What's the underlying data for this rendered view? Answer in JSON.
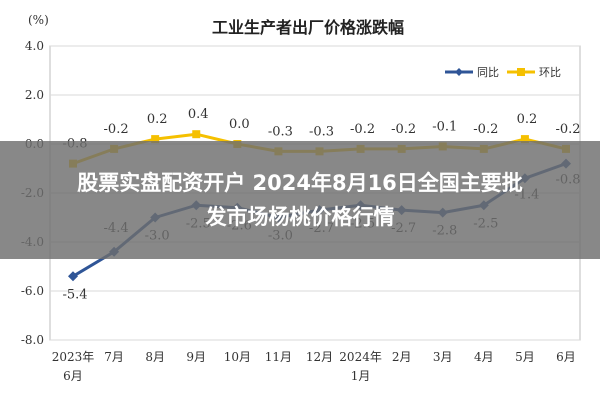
{
  "chart_data": {
    "type": "line",
    "title": "工业生产者出厂价格涨跌幅",
    "unit_label": "(%)",
    "categories": [
      "2023年6月",
      "7月",
      "8月",
      "9月",
      "10月",
      "11月",
      "12月",
      "2024年1月",
      "2月",
      "3月",
      "4月",
      "5月",
      "6月"
    ],
    "tick_lines": [
      [
        "2023年",
        "6月"
      ],
      [
        "7月"
      ],
      [
        "8月"
      ],
      [
        "9月"
      ],
      [
        "10月"
      ],
      [
        "11月"
      ],
      [
        "12月"
      ],
      [
        "2024年",
        "1月"
      ],
      [
        "2月"
      ],
      [
        "3月"
      ],
      [
        "4月"
      ],
      [
        "5月"
      ],
      [
        "6月"
      ]
    ],
    "ylim": [
      -8.0,
      4.0
    ],
    "yticks": [
      4.0,
      2.0,
      0.0,
      -2.0,
      -4.0,
      -6.0,
      -8.0
    ],
    "ytick_labels": [
      "4.0",
      "2.0",
      "0.0",
      "-2.0",
      "-4.0",
      "-6.0",
      "-8.0"
    ],
    "grid": true,
    "legend_position": "top-right",
    "series": [
      {
        "name": "同比",
        "color": "#2f5597",
        "marker": "diamond",
        "values": [
          -5.4,
          -4.4,
          -3.0,
          -2.5,
          -2.6,
          -3.0,
          -2.7,
          -2.5,
          -2.7,
          -2.8,
          -2.5,
          -1.4,
          -0.8
        ],
        "labels": [
          "-5.4",
          "-4.4",
          "-3.0",
          "-2.5",
          "-2.6",
          "-3.0",
          "-2.7",
          "-2.5",
          "-2.7",
          "-2.8",
          "-2.5",
          "-1.4",
          "-0.8"
        ]
      },
      {
        "name": "环比",
        "color": "#f5c000",
        "marker": "square",
        "values": [
          -0.8,
          -0.2,
          0.2,
          0.4,
          0.0,
          -0.3,
          -0.3,
          -0.2,
          -0.2,
          -0.1,
          -0.2,
          0.2,
          -0.2
        ],
        "labels": [
          "-0.8",
          "-0.2",
          "0.2",
          "0.4",
          "0.0",
          "-0.3",
          "-0.3",
          "-0.2",
          "-0.2",
          "-0.1",
          "-0.2",
          "0.2",
          "-0.2"
        ]
      }
    ]
  },
  "overlay": {
    "line1": "股票实盘配资开户 2024年8月16日全国主要批",
    "line2": "发市场杨桃价格行情"
  }
}
